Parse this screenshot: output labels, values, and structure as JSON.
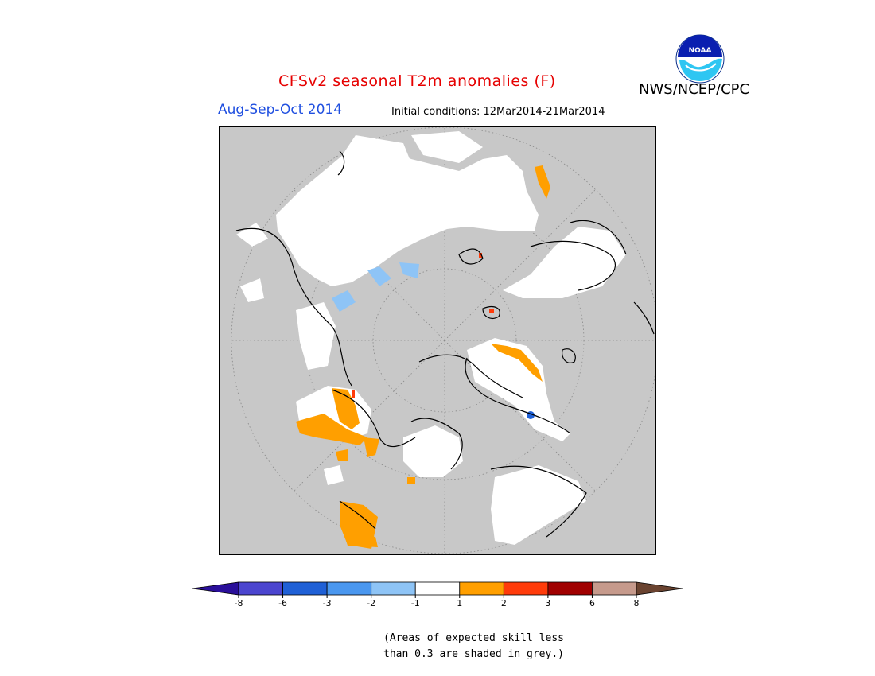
{
  "header": {
    "title": "CFSv2 seasonal T2m anomalies (F)",
    "period": "Aug-Sep-Oct 2014",
    "initial_conditions": "Initial conditions: 12Mar2014-21Mar2014",
    "agency": "NWS/NCEP/CPC",
    "logo_text": "NOAA"
  },
  "legend": {
    "bins": [
      {
        "color": "#2a0f9a"
      },
      {
        "color": "#4b45cf"
      },
      {
        "color": "#1f60d6"
      },
      {
        "color": "#4a97ef"
      },
      {
        "color": "#8ec4f6"
      },
      {
        "color": "#ffffff"
      },
      {
        "color": "#ff9f00"
      },
      {
        "color": "#ff3b0a"
      },
      {
        "color": "#a00000"
      },
      {
        "color": "#c69a8c"
      },
      {
        "color": "#6a4330"
      }
    ],
    "ticks": [
      "-8",
      "-6",
      "-3",
      "-2",
      "-1",
      "1",
      "2",
      "3",
      "6",
      "8"
    ]
  },
  "colors": {
    "no_skill_grey": "#c8c8c8",
    "near_normal_white": "#ffffff",
    "warm_orange": "#ff9f00",
    "warm_red": "#ff3b0a",
    "cool_light_blue": "#8ec4f6",
    "cool_blue": "#1f60d6"
  },
  "footnote": {
    "line1": "(Areas of expected skill less",
    "line2": "than 0.3 are shaded in grey.)"
  }
}
